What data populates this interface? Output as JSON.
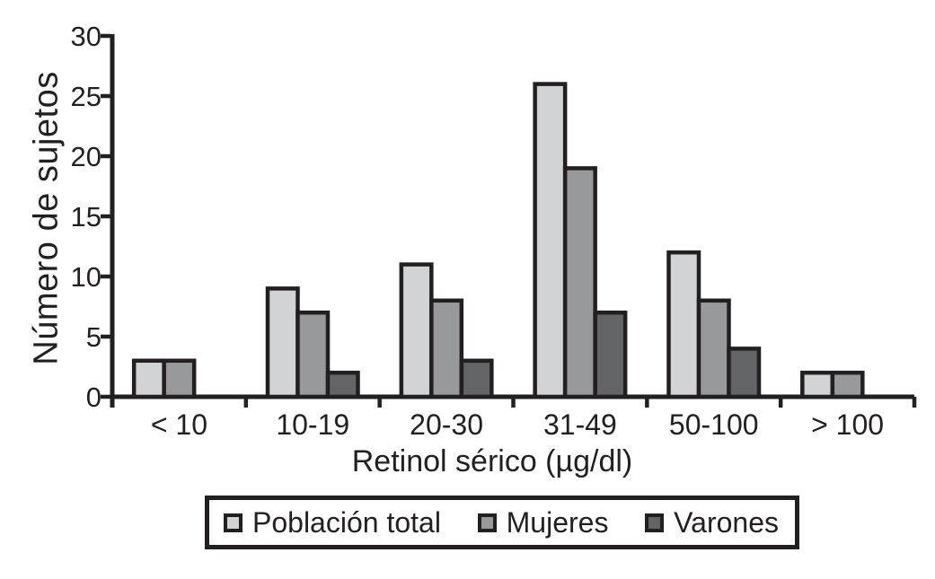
{
  "chart_data": {
    "type": "bar",
    "title": "",
    "xlabel": "Retinol sérico (µg/dl)",
    "ylabel": "Número de sujetos",
    "categories": [
      "< 10",
      "10-19",
      "20-30",
      "31-49",
      "50-100",
      "> 100"
    ],
    "series": [
      {
        "name": "Población total",
        "color": "#d2d3d4",
        "values": [
          3,
          9,
          11,
          26,
          12,
          2
        ]
      },
      {
        "name": "Mujeres",
        "color": "#98999b",
        "values": [
          3,
          7,
          8,
          19,
          8,
          2
        ]
      },
      {
        "name": "Varones",
        "color": "#636466",
        "values": [
          0,
          2,
          3,
          7,
          4,
          0
        ]
      }
    ],
    "ylim": [
      0,
      30
    ],
    "yticks": [
      0,
      5,
      10,
      15,
      20,
      25,
      30
    ],
    "grid": false,
    "legend_position": "bottom",
    "ink_color": "#231f20",
    "background_color": "#ffffff",
    "bar_border_color": "#231f20"
  }
}
